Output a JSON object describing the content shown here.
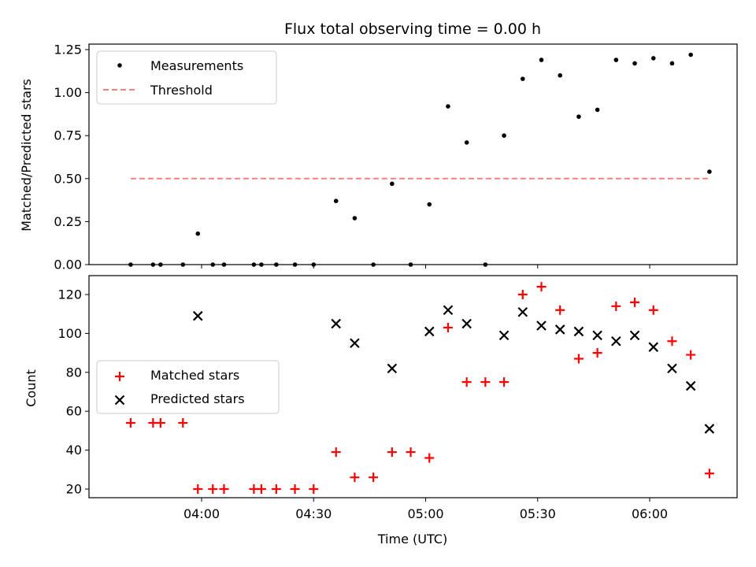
{
  "chart_data": [
    {
      "type": "scatter",
      "title": "Flux total observing time = 0.00 h",
      "xlabel": "",
      "ylabel": "Matched/Predicted stars",
      "ylim": [
        0,
        1.25
      ],
      "yticks": [
        0.0,
        0.25,
        0.5,
        0.75,
        1.0,
        1.25
      ],
      "ytick_labels": [
        "0.00",
        "0.25",
        "0.50",
        "0.75",
        "1.00",
        "1.25"
      ],
      "legend_position": "top-left",
      "series": [
        {
          "name": "Measurements",
          "marker": "dot",
          "color": "#000000",
          "x": [
            "03:41",
            "03:47",
            "03:49",
            "03:55",
            "03:59",
            "04:03",
            "04:06",
            "04:14",
            "04:16",
            "04:20",
            "04:25",
            "04:30",
            "04:36",
            "04:41",
            "04:46",
            "04:51",
            "04:56",
            "05:01",
            "05:06",
            "05:11",
            "05:16",
            "05:21",
            "05:26",
            "05:31",
            "05:36",
            "05:41",
            "05:46",
            "05:51",
            "05:56",
            "06:01",
            "06:06",
            "06:11",
            "06:16"
          ],
          "y": [
            0.0,
            0.0,
            0.0,
            0.0,
            0.18,
            0.0,
            0.0,
            0.0,
            0.0,
            0.0,
            0.0,
            0.0,
            0.37,
            0.27,
            0.0,
            0.47,
            0.0,
            0.35,
            0.92,
            0.71,
            0.0,
            0.75,
            1.08,
            1.19,
            1.1,
            0.86,
            0.9,
            1.19,
            1.17,
            1.2,
            1.17,
            1.22,
            0.54
          ]
        },
        {
          "name": "Threshold",
          "style": "dashed",
          "color": "#ff7f7f",
          "x": [
            "03:41",
            "06:16"
          ],
          "y": [
            0.5,
            0.5
          ]
        }
      ]
    },
    {
      "type": "scatter",
      "xlabel": "Time (UTC)",
      "ylabel": "Count",
      "ylim": [
        15,
        130
      ],
      "yticks": [
        20,
        40,
        60,
        80,
        100,
        120
      ],
      "ytick_labels": [
        "20",
        "40",
        "60",
        "80",
        "100",
        "120"
      ],
      "xticks": [
        "04:00",
        "04:30",
        "05:00",
        "05:30",
        "06:00"
      ],
      "xlim": [
        "03:34",
        "06:28"
      ],
      "legend_position": "center-left",
      "series": [
        {
          "name": "Matched stars",
          "marker": "plus",
          "color": "#ff0000",
          "x": [
            "03:41",
            "03:47",
            "03:49",
            "03:55",
            "03:59",
            "04:03",
            "04:06",
            "04:14",
            "04:16",
            "04:20",
            "04:25",
            "04:30",
            "04:36",
            "04:41",
            "04:46",
            "04:51",
            "04:56",
            "05:01",
            "05:06",
            "05:11",
            "05:16",
            "05:21",
            "05:26",
            "05:31",
            "05:36",
            "05:41",
            "05:46",
            "05:51",
            "05:56",
            "06:01",
            "06:06",
            "06:11",
            "06:16"
          ],
          "y": [
            54,
            54,
            54,
            54,
            20,
            20,
            20,
            20,
            20,
            20,
            20,
            20,
            39,
            26,
            26,
            39,
            39,
            36,
            103,
            75,
            75,
            75,
            120,
            124,
            112,
            87,
            90,
            114,
            116,
            112,
            96,
            89,
            28
          ]
        },
        {
          "name": "Predicted stars",
          "marker": "x",
          "color": "#000000",
          "x": [
            "03:59",
            "04:36",
            "04:41",
            "04:51",
            "05:01",
            "05:06",
            "05:11",
            "05:21",
            "05:26",
            "05:31",
            "05:36",
            "05:41",
            "05:46",
            "05:51",
            "05:56",
            "06:01",
            "06:06",
            "06:11",
            "06:16"
          ],
          "y": [
            109,
            105,
            95,
            82,
            101,
            112,
            105,
            99,
            111,
            104,
            102,
            101,
            99,
            96,
            99,
            93,
            82,
            73,
            51
          ]
        }
      ]
    }
  ]
}
